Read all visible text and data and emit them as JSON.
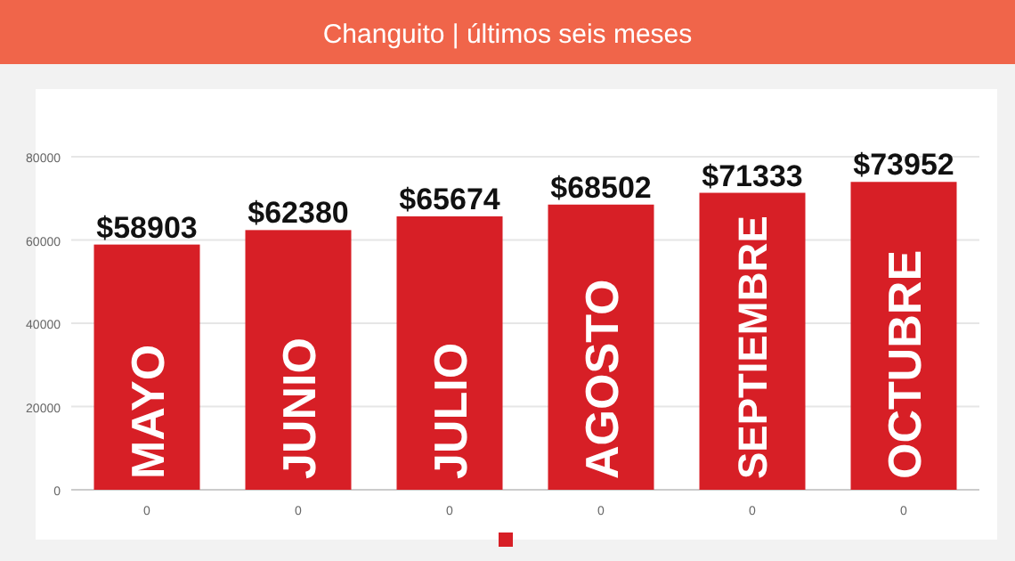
{
  "chart_data": {
    "type": "bar",
    "title": "Changuito | últimos seis meses",
    "categories": [
      "MAYO",
      "JUNIO",
      "JULIO",
      "AGOSTO",
      "SEPTIEMBRE",
      "OCTUBRE"
    ],
    "series": [
      {
        "color": "#d71f26",
        "values": [
          58903,
          62380,
          65674,
          68502,
          71333,
          73952
        ],
        "value_labels": [
          "$58903",
          "$62380",
          "$65674",
          "$68502",
          "$71333",
          "$73952"
        ]
      }
    ],
    "annotations": [
      "0",
      "0",
      "0",
      "0",
      "0",
      "0"
    ],
    "ylim": [
      0,
      80000
    ],
    "yticks": [
      0,
      20000,
      40000,
      60000,
      80000
    ],
    "grid": "y"
  }
}
